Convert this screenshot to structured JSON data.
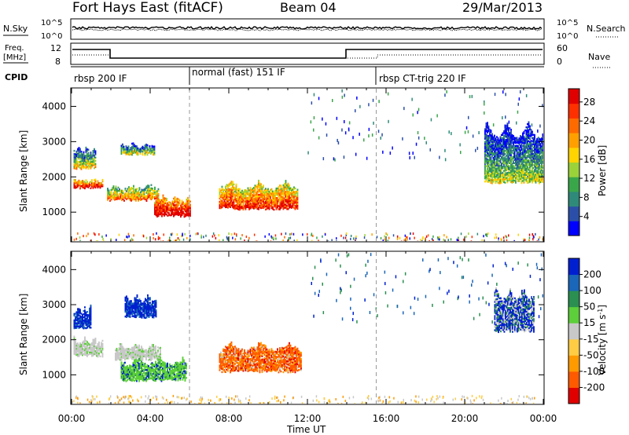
{
  "header": {
    "title": "Fort Hays East (fitACF)",
    "beam": "Beam 04",
    "date": "29/Mar/2013"
  },
  "top_panels": {
    "nsky_label": "N.Sky",
    "nsky_ticks": [
      "10^5",
      "10^0"
    ],
    "nsearch_label": "N.Search",
    "nsearch_ticks": [
      "10^5",
      "10^0"
    ],
    "freq_label": "Freq.",
    "freq_unit": "[MHz]",
    "freq_ticks": [
      "12",
      "8"
    ],
    "nave_label": "Nave",
    "nave_ticks": [
      "60",
      "0"
    ],
    "cpid_label": "CPID",
    "cpid_segments": [
      {
        "label": "rbsp 200 IF",
        "start_h": 0,
        "end_h": 6
      },
      {
        "label": "normal (fast) 151 IF",
        "start_h": 6,
        "end_h": 15.5
      },
      {
        "label": "rbsp CT-trig 220 IF",
        "start_h": 15.5,
        "end_h": 24
      }
    ]
  },
  "chart_data": [
    {
      "type": "heatmap",
      "name": "power",
      "xlabel": "Time UT",
      "ylabel": "Slant Range [km]",
      "x_ticks": [
        "00:00",
        "04:00",
        "08:00",
        "12:00",
        "16:00",
        "20:00",
        "00:00"
      ],
      "xlim_hours": [
        0,
        24
      ],
      "y_ticks": [
        1000,
        2000,
        3000,
        4000
      ],
      "ylim_km": [
        180,
        4500
      ],
      "colorbar": {
        "label": "Power [dB]",
        "ticks": [
          "4",
          "8",
          "12",
          "16",
          "20",
          "24",
          "28"
        ],
        "colors": [
          "#0000ff",
          "#2b4fa8",
          "#2f8a7a",
          "#3aa64a",
          "#9bd23a",
          "#ffd400",
          "#ffa000",
          "#ff6a00",
          "#ff3000",
          "#e00000"
        ]
      },
      "echo_regions": [
        {
          "t0": 0.1,
          "t1": 1.6,
          "r0": 1650,
          "r1": 2000,
          "level": 0.75
        },
        {
          "t0": 0.1,
          "t1": 1.2,
          "r0": 2200,
          "r1": 2900,
          "level": 0.35
        },
        {
          "t0": 1.8,
          "t1": 4.4,
          "r0": 1300,
          "r1": 1800,
          "level": 0.55
        },
        {
          "t0": 2.5,
          "t1": 4.2,
          "r0": 2600,
          "r1": 3000,
          "level": 0.3
        },
        {
          "t0": 4.2,
          "t1": 6.0,
          "r0": 850,
          "r1": 1500,
          "level": 0.85
        },
        {
          "t0": 7.5,
          "t1": 11.5,
          "r0": 1050,
          "r1": 1900,
          "level": 0.7
        },
        {
          "t0": 21.0,
          "t1": 24.0,
          "r0": 1800,
          "r1": 3600,
          "level": 0.25
        }
      ],
      "dashed_lines_hours": [
        6,
        15.5
      ]
    },
    {
      "type": "heatmap",
      "name": "velocity",
      "xlabel": "Time UT",
      "ylabel": "Slant Range [km]",
      "x_ticks": [
        "00:00",
        "04:00",
        "08:00",
        "12:00",
        "16:00",
        "20:00",
        "00:00"
      ],
      "xlim_hours": [
        0,
        24
      ],
      "y_ticks": [
        1000,
        2000,
        3000,
        4000
      ],
      "ylim_km": [
        180,
        4500
      ],
      "colorbar": {
        "label": "Velocity [m s",
        "label_sup": "-1",
        "label_close": "]",
        "ticks": [
          "200",
          "100",
          "50",
          "15",
          "-15",
          "-50",
          "-100",
          "-200"
        ],
        "colors": [
          "#0020d0",
          "#1a66b8",
          "#2a8f50",
          "#5ccf3a",
          "#c8c8c8",
          "#ffcc44",
          "#ff9a00",
          "#ff5a00",
          "#e00000"
        ]
      },
      "echo_regions": [
        {
          "t0": 0.1,
          "t1": 1.6,
          "r0": 1500,
          "r1": 2100,
          "vel": "gray"
        },
        {
          "t0": 0.1,
          "t1": 1.0,
          "r0": 2300,
          "r1": 3000,
          "vel": "blue"
        },
        {
          "t0": 2.2,
          "t1": 4.5,
          "r0": 1400,
          "r1": 1900,
          "vel": "gray"
        },
        {
          "t0": 2.7,
          "t1": 4.3,
          "r0": 2600,
          "r1": 3300,
          "vel": "blue"
        },
        {
          "t0": 2.5,
          "t1": 5.8,
          "r0": 800,
          "r1": 1500,
          "vel": "green"
        },
        {
          "t0": 7.5,
          "t1": 11.7,
          "r0": 1050,
          "r1": 1950,
          "vel": "red"
        },
        {
          "t0": 21.5,
          "t1": 23.5,
          "r0": 2200,
          "r1": 3500,
          "vel": "mixed"
        }
      ],
      "dashed_lines_hours": [
        6,
        15.5
      ]
    }
  ]
}
